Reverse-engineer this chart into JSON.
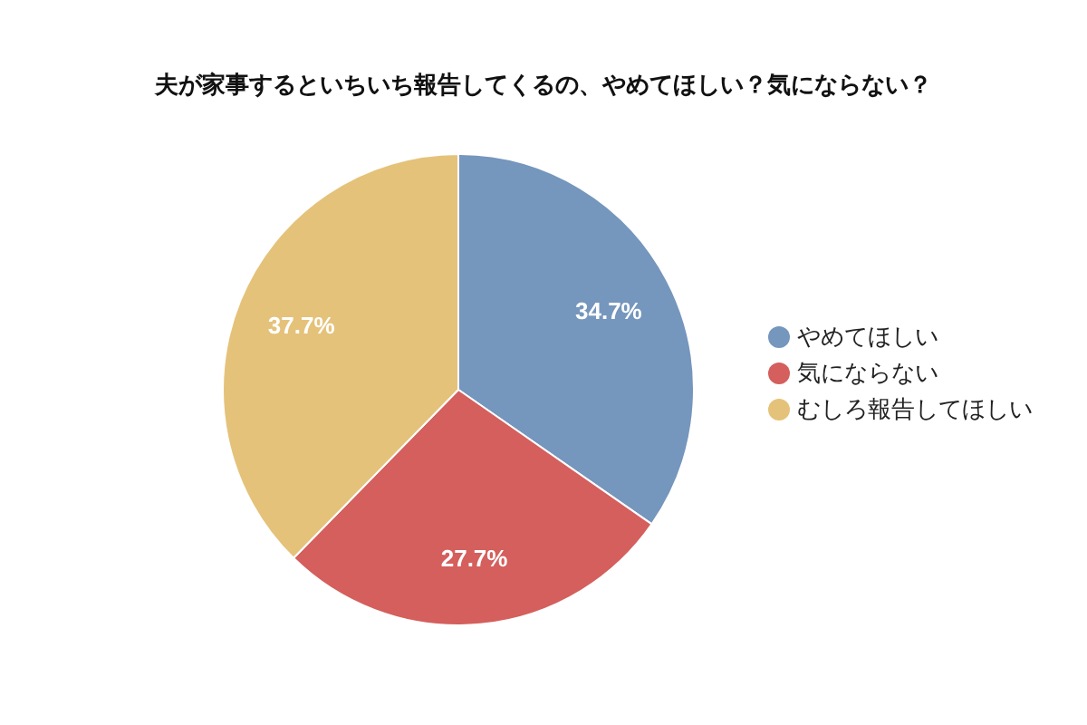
{
  "chart_data": {
    "type": "pie",
    "title": "夫が家事するといちいち報告してくるの、やめてほしい？気にならない？",
    "categories": [
      "やめてほしい",
      "気にならない",
      "むしろ報告してほしい"
    ],
    "values": [
      34.7,
      27.7,
      37.7
    ],
    "colors": [
      "#7596bd",
      "#d45f5c",
      "#e5c27a"
    ],
    "value_labels": [
      "34.7%",
      "27.7%",
      "37.7%"
    ],
    "legend": "right"
  }
}
